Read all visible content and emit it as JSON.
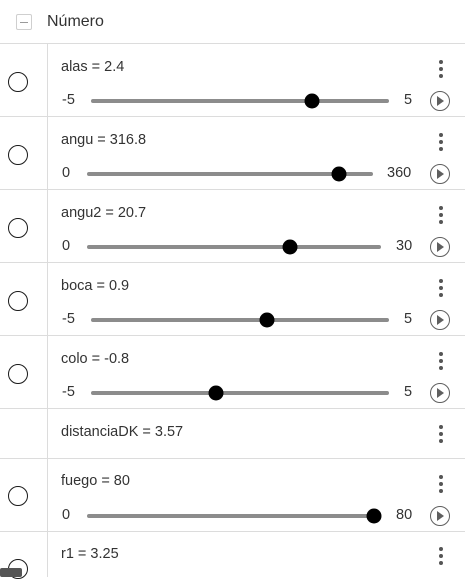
{
  "header": {
    "title": "Número"
  },
  "rows": [
    {
      "definition": "alas = 2.4",
      "slider": {
        "min_label": "-5",
        "max_label": "5",
        "min": -5,
        "max": 5,
        "value": 2.4
      }
    },
    {
      "definition": "angu = 316.8",
      "slider": {
        "min_label": "0",
        "max_label": "360",
        "min": 0,
        "max": 360,
        "value": 316.8
      }
    },
    {
      "definition": "angu2 = 20.7",
      "slider": {
        "min_label": "0",
        "max_label": "30",
        "min": 0,
        "max": 30,
        "value": 20.7
      }
    },
    {
      "definition": "boca = 0.9",
      "slider": {
        "min_label": "-5",
        "max_label": "5",
        "min": -5,
        "max": 5,
        "value": 0.9
      }
    },
    {
      "definition": "colo = -0.8",
      "slider": {
        "min_label": "-5",
        "max_label": "5",
        "min": -5,
        "max": 5,
        "value": -0.8
      }
    },
    {
      "definition": "distanciaDK = 3.57"
    },
    {
      "definition": "fuego = 80",
      "slider": {
        "min_label": "0",
        "max_label": "80",
        "min": 0,
        "max": 80,
        "value": 80
      }
    },
    {
      "definition": "r1 = 3.25"
    }
  ]
}
